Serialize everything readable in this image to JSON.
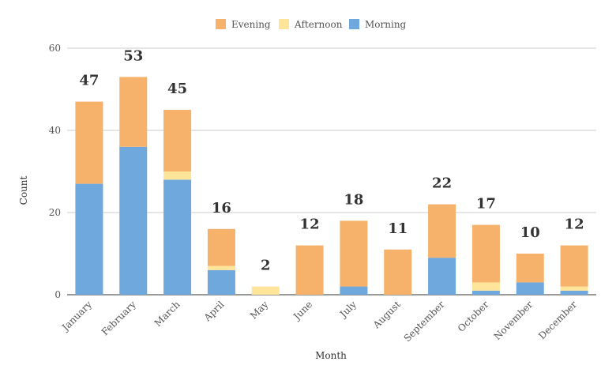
{
  "chart_data": {
    "type": "bar",
    "stacked": true,
    "title": "",
    "xlabel": "Month",
    "ylabel": "Count",
    "ylim": [
      0,
      60
    ],
    "yticks": [
      0,
      20,
      40,
      60
    ],
    "grid": true,
    "legend_position": "top-center",
    "categories": [
      "January",
      "February",
      "March",
      "April",
      "May",
      "June",
      "July",
      "August",
      "September",
      "October",
      "November",
      "December"
    ],
    "series": [
      {
        "name": "Morning",
        "color": "#6fa8dc",
        "values": [
          27,
          36,
          28,
          6,
          0,
          0,
          2,
          0,
          9,
          1,
          3,
          1
        ]
      },
      {
        "name": "Afternoon",
        "color": "#ffe599",
        "values": [
          0,
          0,
          2,
          1,
          2,
          0,
          0,
          0,
          0,
          2,
          0,
          1
        ]
      },
      {
        "name": "Evening",
        "color": "#f6b26b",
        "values": [
          20,
          17,
          15,
          9,
          0,
          12,
          16,
          11,
          13,
          14,
          7,
          10
        ]
      }
    ],
    "legend_order": [
      "Evening",
      "Afternoon",
      "Morning"
    ],
    "totals": [
      47,
      53,
      45,
      16,
      2,
      12,
      18,
      11,
      22,
      17,
      10,
      12
    ]
  }
}
